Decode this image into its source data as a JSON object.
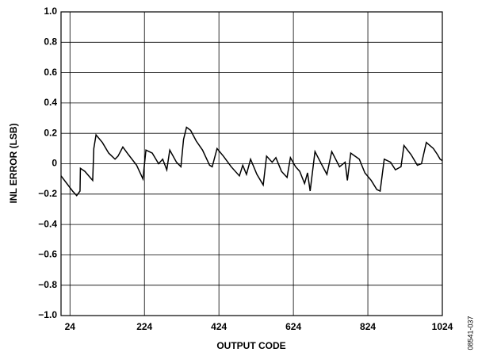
{
  "chart_data": {
    "type": "line",
    "xlabel": "OUTPUT CODE",
    "ylabel": "INL ERROR (LSB)",
    "note": "08541-037",
    "x": [
      0,
      31,
      42,
      51,
      52,
      64,
      85,
      88,
      94,
      111,
      128,
      145,
      153,
      166,
      181,
      203,
      220,
      228,
      245,
      262,
      273,
      284,
      292,
      310,
      322,
      329,
      337,
      348,
      363,
      380,
      399,
      406,
      419,
      436,
      457,
      479,
      488,
      498,
      509,
      526,
      543,
      552,
      567,
      577,
      592,
      607,
      616,
      630,
      641,
      654,
      662,
      669,
      682,
      701,
      714,
      727,
      748,
      763,
      769,
      778,
      801,
      816,
      833,
      848,
      857,
      868,
      885,
      898,
      913,
      921,
      940,
      957,
      968,
      981,
      1000,
      1011,
      1018,
      1024
    ],
    "series": [
      {
        "name": "INL",
        "color": "#000000",
        "values": [
          -0.08,
          -0.18,
          -0.21,
          -0.18,
          -0.03,
          -0.05,
          -0.11,
          0.1,
          0.19,
          0.14,
          0.07,
          0.03,
          0.05,
          0.11,
          0.06,
          -0.01,
          -0.1,
          0.09,
          0.07,
          0.0,
          0.03,
          -0.04,
          0.09,
          0.01,
          -0.02,
          0.16,
          0.24,
          0.22,
          0.15,
          0.09,
          -0.01,
          -0.02,
          0.1,
          0.05,
          -0.02,
          -0.08,
          -0.01,
          -0.07,
          0.03,
          -0.07,
          -0.14,
          0.05,
          0.01,
          0.04,
          -0.05,
          -0.09,
          0.04,
          -0.02,
          -0.05,
          -0.13,
          -0.06,
          -0.18,
          0.08,
          -0.01,
          -0.07,
          0.08,
          -0.02,
          0.01,
          -0.11,
          0.07,
          0.03,
          -0.06,
          -0.11,
          -0.17,
          -0.18,
          0.03,
          0.01,
          -0.04,
          -0.02,
          0.12,
          0.06,
          -0.01,
          0.0,
          0.14,
          0.1,
          0.06,
          0.03,
          0.02
        ]
      }
    ],
    "xlim": [
      0,
      1024
    ],
    "xticks": [
      24,
      224,
      424,
      624,
      824,
      1024
    ],
    "ylim": [
      -1,
      1
    ],
    "yticks": [
      {
        "value": -1,
        "label": "−1.0"
      },
      {
        "value": -0.8,
        "label": "−0.8"
      },
      {
        "value": -0.6,
        "label": "−0.6"
      },
      {
        "value": -0.4,
        "label": "−0.4"
      },
      {
        "value": -0.2,
        "label": "−0.2"
      },
      0,
      {
        "value": 0.2,
        "label": "0.2"
      },
      {
        "value": 0.4,
        "label": "0.4"
      },
      {
        "value": 0.6,
        "label": "0.6"
      },
      {
        "value": 0.8,
        "label": "0.8"
      },
      {
        "value": 1,
        "label": "1.0"
      }
    ],
    "grid": true
  }
}
